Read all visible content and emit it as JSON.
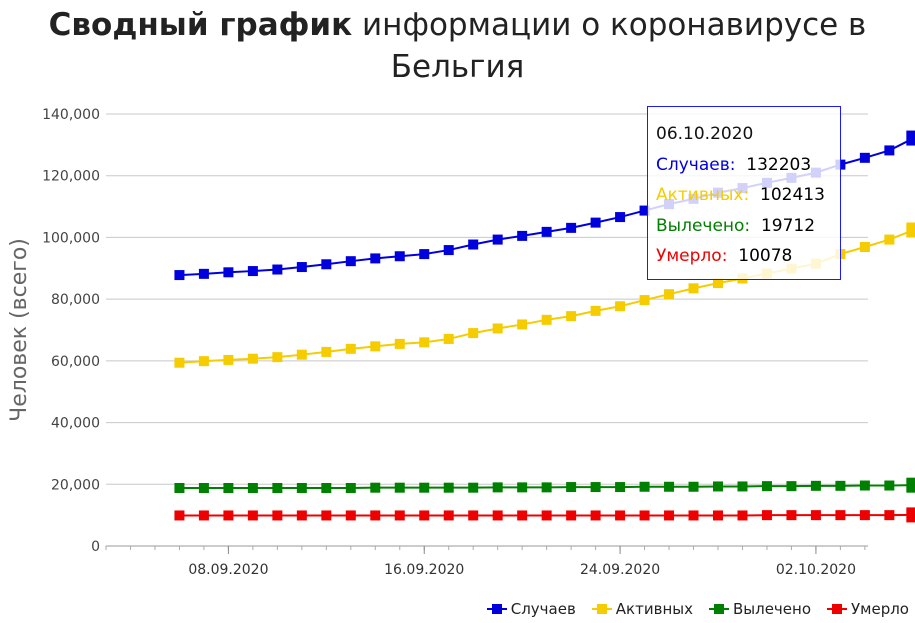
{
  "title": {
    "bold": "Сводный график",
    "rest_line1": "информации о коронавирусе в",
    "line2": "Бельгия"
  },
  "chart_data": {
    "type": "line",
    "ylabel": "Человек (всего)",
    "ylim": [
      0,
      140000
    ],
    "yticks": [
      "0",
      "20,000",
      "40,000",
      "60,000",
      "80,000",
      "100,000",
      "120,000",
      "140,000"
    ],
    "xticks": [
      {
        "label": "08.09.2020",
        "date": "2020-09-08"
      },
      {
        "label": "16.09.2020",
        "date": "2020-09-16"
      },
      {
        "label": "24.09.2020",
        "date": "2020-09-24"
      },
      {
        "label": "02.10.2020",
        "date": "2020-10-02"
      }
    ],
    "x": [
      "2020-09-06",
      "2020-09-07",
      "2020-09-08",
      "2020-09-09",
      "2020-09-10",
      "2020-09-11",
      "2020-09-12",
      "2020-09-13",
      "2020-09-14",
      "2020-09-15",
      "2020-09-16",
      "2020-09-17",
      "2020-09-18",
      "2020-09-19",
      "2020-09-20",
      "2020-09-21",
      "2020-09-22",
      "2020-09-23",
      "2020-09-24",
      "2020-09-25",
      "2020-09-26",
      "2020-09-27",
      "2020-09-28",
      "2020-09-29",
      "2020-09-30",
      "2020-10-01",
      "2020-10-02",
      "2020-10-03",
      "2020-10-04",
      "2020-10-05",
      "2020-10-06"
    ],
    "series": [
      {
        "name": "Случаев",
        "color": "#0000dd",
        "values": [
          87800,
          88200,
          88700,
          89100,
          89600,
          90400,
          91300,
          92300,
          93200,
          93900,
          94600,
          95900,
          97700,
          99300,
          100500,
          101800,
          103100,
          104800,
          106600,
          108700,
          110800,
          112500,
          114500,
          116000,
          117700,
          119300,
          121000,
          123600,
          125800,
          128200,
          132203
        ]
      },
      {
        "name": "Активных",
        "color": "#f5cc00",
        "values": [
          59400,
          59900,
          60300,
          60700,
          61200,
          62000,
          62900,
          63900,
          64700,
          65500,
          66000,
          67100,
          69000,
          70500,
          71800,
          73300,
          74500,
          76200,
          77700,
          79700,
          81600,
          83500,
          85200,
          86700,
          88300,
          89900,
          91500,
          94600,
          96900,
          99300,
          102413
        ]
      },
      {
        "name": "Вылечено",
        "color": "#008000",
        "values": [
          18800,
          18800,
          18800,
          18800,
          18800,
          18800,
          18800,
          18800,
          18900,
          18900,
          18900,
          18900,
          18900,
          19000,
          19000,
          19000,
          19100,
          19100,
          19100,
          19200,
          19200,
          19200,
          19300,
          19300,
          19400,
          19400,
          19500,
          19500,
          19600,
          19600,
          19712
        ]
      },
      {
        "name": "Умерло",
        "color": "#ee0000",
        "values": [
          9900,
          9900,
          9900,
          9900,
          9900,
          9900,
          9900,
          9900,
          9900,
          9900,
          9900,
          9900,
          9900,
          9900,
          9900,
          9900,
          9900,
          9900,
          9900,
          9900,
          9900,
          9900,
          9900,
          9900,
          10000,
          10000,
          10000,
          10000,
          10000,
          10000,
          10078
        ]
      }
    ],
    "grid": true,
    "legend_position": "bottom-right"
  },
  "tooltip": {
    "date": "06.10.2020",
    "rows": [
      {
        "label": "Случаев:",
        "value": "132203",
        "color": "#0000dd"
      },
      {
        "label": "Активных:",
        "value": "102413",
        "color": "#f5cc00"
      },
      {
        "label": "Вылечено:",
        "value": "19712",
        "color": "#008000"
      },
      {
        "label": "Умерло:",
        "value": "10078",
        "color": "#ee0000"
      }
    ]
  },
  "legend": [
    {
      "label": "Случаев",
      "color": "#0000dd"
    },
    {
      "label": "Активных",
      "color": "#f5cc00"
    },
    {
      "label": "Вылечено",
      "color": "#008000"
    },
    {
      "label": "Умерло",
      "color": "#ee0000"
    }
  ]
}
